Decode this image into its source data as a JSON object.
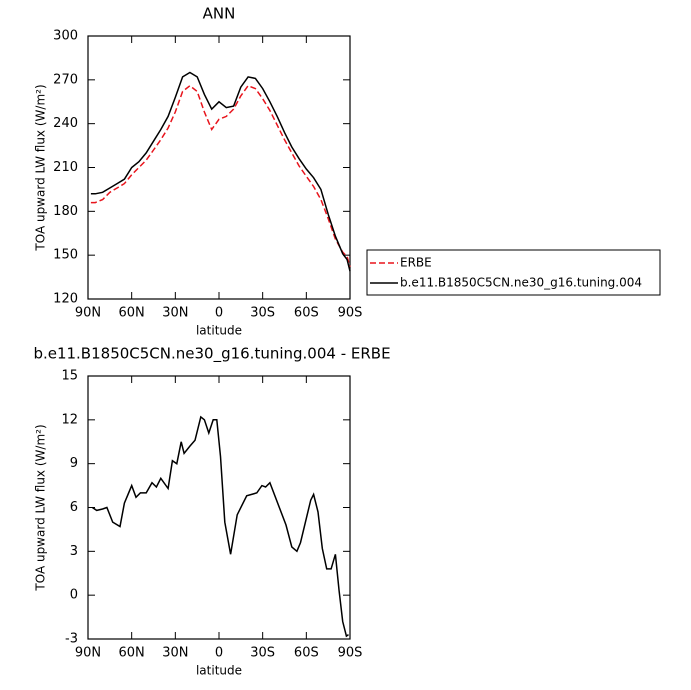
{
  "chart_data": [
    {
      "type": "line",
      "title": "ANN",
      "x_label": "latitude",
      "y_label": "TOA upward LW flux (W/m²)",
      "x": [
        88,
        85,
        80,
        75,
        70,
        65,
        60,
        55,
        50,
        45,
        40,
        35,
        30,
        25,
        20,
        15,
        10,
        5,
        0,
        -5,
        -10,
        -15,
        -20,
        -25,
        -30,
        -35,
        -40,
        -45,
        -50,
        -55,
        -60,
        -65,
        -70,
        -75,
        -80,
        -85,
        -88,
        -90
      ],
      "series": [
        {
          "name": "ERBE",
          "color": "#e8141c",
          "dash": true,
          "values": [
            186,
            186,
            188,
            193,
            196,
            199,
            205,
            210,
            215,
            222,
            229,
            237,
            248,
            262,
            266,
            262,
            248,
            236,
            243,
            245,
            250,
            259,
            266,
            264,
            257,
            249,
            239,
            229,
            220,
            211,
            204,
            197,
            188,
            175,
            161,
            152,
            149,
            142
          ]
        },
        {
          "name": "b.e11.B1850C5CN.ne30_g16.tuning.004",
          "color": "#000000",
          "dash": false,
          "values": [
            192,
            192,
            193,
            196,
            199,
            202,
            210,
            214,
            220,
            228,
            236,
            245,
            258,
            272,
            275,
            272,
            260,
            250,
            255,
            251,
            252,
            265,
            272,
            271,
            264,
            255,
            245,
            234,
            224,
            216,
            209,
            203,
            195,
            178,
            163,
            151,
            147,
            139
          ]
        }
      ],
      "xlim": [
        90,
        -90
      ],
      "xticks": [
        {
          "value": 90,
          "label": "90N"
        },
        {
          "value": 60,
          "label": "60N"
        },
        {
          "value": 30,
          "label": "30N"
        },
        0,
        {
          "value": -30,
          "label": "30S"
        },
        {
          "value": -60,
          "label": "60S"
        },
        {
          "value": -90,
          "label": "90S"
        }
      ],
      "ylim": [
        120,
        300
      ],
      "yticks": [
        120,
        150,
        180,
        210,
        240,
        270,
        300
      ],
      "legend": "right"
    },
    {
      "type": "line",
      "title": "b.e11.B1850C5CN.ne30_g16.tuning.004 - ERBE",
      "x_label": "latitude",
      "y_label": "TOA upward LW flux (W/m²)",
      "x": [
        87,
        84,
        80,
        77,
        73,
        68,
        65,
        60,
        57,
        54,
        50,
        46,
        43,
        40,
        35,
        32,
        29,
        26,
        24,
        20,
        16.5,
        12.5,
        10,
        7,
        4,
        1.5,
        -1,
        -4,
        -8,
        -12.5,
        -19,
        -26,
        -29.5,
        -32,
        -35,
        -46,
        -50,
        -53.5,
        -56,
        -63,
        -65,
        -68,
        -71,
        -74,
        -77,
        -80,
        -82.5,
        -85,
        -87.5,
        -89
      ],
      "values": [
        6.0,
        5.8,
        5.9,
        6.0,
        5.0,
        4.7,
        6.3,
        7.5,
        6.7,
        7.0,
        7.0,
        7.7,
        7.4,
        8.0,
        7.3,
        9.2,
        9.0,
        10.5,
        9.7,
        10.2,
        10.6,
        12.2,
        12.0,
        11.1,
        12.0,
        12.0,
        9.5,
        5.0,
        2.8,
        5.5,
        6.8,
        7.0,
        7.5,
        7.4,
        7.7,
        4.8,
        3.3,
        3.0,
        3.6,
        6.5,
        6.9,
        5.7,
        3.2,
        1.8,
        1.8,
        2.8,
        0.3,
        -1.8,
        -2.8,
        -2.7
      ],
      "color": "#000000",
      "xlim": [
        90,
        -90
      ],
      "xticks": [
        {
          "value": 90,
          "label": "90N"
        },
        {
          "value": 60,
          "label": "60N"
        },
        {
          "value": 30,
          "label": "30N"
        },
        0,
        {
          "value": -30,
          "label": "30S"
        },
        {
          "value": -60,
          "label": "60S"
        },
        {
          "value": -90,
          "label": "90S"
        }
      ],
      "ylim": [
        -3,
        15
      ],
      "yticks": [
        -3,
        0,
        3,
        6,
        9,
        12,
        15
      ]
    }
  ]
}
